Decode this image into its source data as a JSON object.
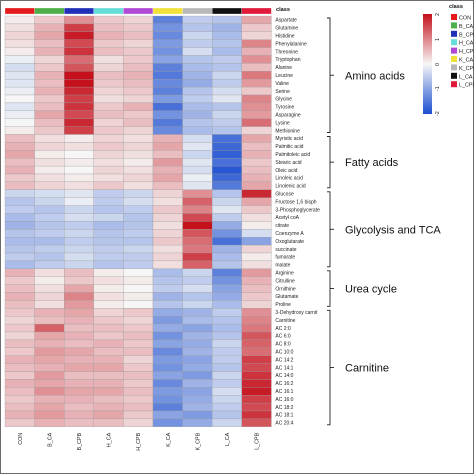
{
  "chart_data": {
    "type": "heatmap",
    "annotation_title": "class",
    "columns": [
      "CON",
      "B_CA",
      "B_CPB",
      "H_CA",
      "H_CPB",
      "K_CA",
      "K_CPB",
      "L_CA",
      "L_CPB"
    ],
    "class_colors": {
      "CON": "#e41a1c",
      "B_CA": "#4daf4a",
      "B_CPB": "#1f2fb8",
      "H_CA": "#66ddd8",
      "H_CPB": "#b04ad6",
      "K_CA": "#f0e23a",
      "K_CPB": "#b8b8b8",
      "L_CA": "#111111",
      "L_CPB": "#e01a3a"
    },
    "rows": [
      "Aspartate",
      "Glutamine",
      "Histidine",
      "Phenylalanine",
      "Threonine",
      "Tryptophan",
      "Alanine",
      "Leucine",
      "Valine",
      "Serine",
      "Glycine",
      "Tyrosine",
      "Asparagine",
      "Lysine",
      "Methionine",
      "Myristic acid",
      "Palmitic acid",
      "Palmitoleic acid",
      "Stearic acid",
      "Oleic acid",
      "Linoleic acid",
      "Linolenic acid",
      "Glucose",
      "Fructose 1,6 bisph",
      "3-Phosphoglycerate",
      "Acetyl coA",
      "citrate",
      "Coenzyme A",
      "Oxoglutarate",
      "succinate",
      "fumarate",
      "malate",
      "Arginine",
      "Citrulline",
      "Ornithine",
      "Glutamate",
      "Proline",
      "3-Dehydroxy carnit",
      "Carnitine",
      "AC 2:0",
      "AC 6:0",
      "AC 8:0",
      "AC 10:0",
      "AC 14:2",
      "AC 14:1",
      "AC 14:0",
      "AC 16:2",
      "AC 16:1",
      "AC 16:0",
      "AC 18:2",
      "AC 18:1",
      "AC 20:4"
    ],
    "groups": [
      {
        "label": "Amino acids",
        "start": 0,
        "end": 14
      },
      {
        "label": "Fatty acids",
        "start": 15,
        "end": 21
      },
      {
        "label": "Glycolysis and TCA",
        "start": 22,
        "end": 31
      },
      {
        "label": "Urea cycle",
        "start": 32,
        "end": 36
      },
      {
        "label": "Carnitine",
        "start": 37,
        "end": 51
      }
    ],
    "values": [
      [
        0.1,
        0.4,
        0.9,
        0.4,
        0.3,
        -1.4,
        -0.5,
        -0.6,
        0.7
      ],
      [
        0.2,
        0.6,
        1.6,
        0.5,
        0.4,
        -1.2,
        -0.6,
        -0.8,
        0.4
      ],
      [
        0.3,
        0.7,
        1.9,
        0.6,
        0.5,
        -1.3,
        -0.4,
        -0.7,
        0.3
      ],
      [
        0.2,
        0.5,
        1.5,
        0.4,
        0.3,
        -1.1,
        -0.5,
        -0.6,
        1.0
      ],
      [
        0.1,
        0.6,
        1.7,
        0.5,
        0.4,
        -1.2,
        -0.3,
        -0.7,
        0.6
      ],
      [
        -0.1,
        0.3,
        1.2,
        0.2,
        0.4,
        -1.0,
        -0.6,
        -0.5,
        0.9
      ],
      [
        -0.3,
        0.4,
        1.4,
        0.3,
        0.5,
        -1.4,
        -0.7,
        -0.6,
        0.5
      ],
      [
        -0.2,
        0.6,
        2.0,
        0.5,
        0.6,
        -1.5,
        -0.8,
        -0.4,
        1.1
      ],
      [
        -0.2,
        0.5,
        2.1,
        0.4,
        0.5,
        -1.3,
        -0.9,
        -0.5,
        0.8
      ],
      [
        -0.1,
        0.6,
        1.8,
        0.3,
        0.4,
        -1.4,
        -0.6,
        -0.3,
        0.4
      ],
      [
        0.0,
        0.4,
        1.6,
        0.2,
        0.3,
        -1.1,
        -0.5,
        -0.2,
        1.0
      ],
      [
        -0.2,
        0.5,
        1.7,
        0.4,
        0.6,
        -1.6,
        -0.7,
        -0.6,
        0.9
      ],
      [
        -0.1,
        0.7,
        1.5,
        0.5,
        0.4,
        -1.2,
        -0.8,
        -0.4,
        0.8
      ],
      [
        0.0,
        0.5,
        1.8,
        0.3,
        0.5,
        -1.5,
        -0.6,
        -0.5,
        1.2
      ],
      [
        0.1,
        0.4,
        1.6,
        0.4,
        0.3,
        -1.3,
        -0.7,
        -0.6,
        0.3
      ],
      [
        0.5,
        0.2,
        0.1,
        0.3,
        0.2,
        0.6,
        -0.3,
        -1.6,
        0.7
      ],
      [
        0.6,
        0.3,
        0.2,
        0.4,
        0.3,
        0.7,
        -0.2,
        -1.7,
        0.5
      ],
      [
        0.7,
        0.1,
        0.0,
        0.3,
        0.2,
        0.5,
        -0.4,
        -1.8,
        0.6
      ],
      [
        0.5,
        0.2,
        0.1,
        0.2,
        0.1,
        0.8,
        -0.2,
        -1.6,
        0.4
      ],
      [
        0.6,
        0.1,
        0.0,
        0.3,
        0.2,
        0.6,
        -0.3,
        -1.9,
        0.5
      ],
      [
        0.4,
        0.2,
        0.1,
        0.2,
        0.3,
        0.7,
        -0.1,
        -1.7,
        0.6
      ],
      [
        0.5,
        0.3,
        0.2,
        0.4,
        0.2,
        0.5,
        -0.2,
        -1.5,
        0.7
      ],
      [
        -0.4,
        -0.3,
        -0.2,
        -0.5,
        -0.4,
        0.3,
        0.9,
        -0.6,
        1.8
      ],
      [
        -0.6,
        -0.4,
        -0.1,
        -0.5,
        -0.3,
        0.2,
        1.3,
        -0.4,
        0.7
      ],
      [
        -0.5,
        -0.6,
        -0.4,
        -0.6,
        -0.5,
        0.4,
        1.0,
        -0.2,
        0.4
      ],
      [
        -0.7,
        -0.5,
        -0.3,
        -0.4,
        -0.6,
        0.3,
        1.5,
        -0.5,
        0.2
      ],
      [
        -0.8,
        -0.6,
        -0.5,
        -0.7,
        -0.6,
        0.2,
        2.2,
        -0.9,
        0.1
      ],
      [
        -0.6,
        -0.5,
        -0.4,
        -0.6,
        -0.5,
        0.3,
        1.4,
        -1.2,
        -0.3
      ],
      [
        -0.7,
        -0.7,
        -0.5,
        -0.6,
        -0.6,
        0.4,
        1.2,
        -1.6,
        -1.0
      ],
      [
        -0.6,
        -0.5,
        -0.4,
        -0.5,
        -0.4,
        0.2,
        1.1,
        -0.8,
        0.3
      ],
      [
        -0.5,
        -0.6,
        -0.3,
        -0.5,
        -0.5,
        0.3,
        1.6,
        -0.7,
        0.1
      ],
      [
        -0.7,
        -0.5,
        -0.4,
        -0.6,
        -0.5,
        0.2,
        1.3,
        -0.6,
        0.2
      ],
      [
        0.6,
        0.2,
        0.5,
        0.1,
        0.0,
        -0.7,
        -0.4,
        -1.4,
        0.8
      ],
      [
        0.4,
        0.1,
        0.4,
        0.2,
        0.1,
        -0.6,
        -0.5,
        -1.2,
        0.6
      ],
      [
        0.5,
        0.2,
        0.7,
        0.1,
        0.0,
        -0.5,
        -0.3,
        -1.0,
        0.5
      ],
      [
        0.6,
        0.3,
        1.0,
        0.2,
        0.1,
        -0.8,
        -0.6,
        -0.9,
        0.4
      ],
      [
        0.5,
        0.2,
        0.8,
        0.1,
        0.0,
        -0.6,
        -0.4,
        -0.7,
        0.3
      ],
      [
        0.4,
        0.6,
        0.7,
        0.3,
        0.4,
        -0.9,
        -0.8,
        -0.5,
        0.9
      ],
      [
        0.3,
        0.5,
        0.6,
        0.4,
        0.3,
        -1.1,
        -0.7,
        -0.6,
        1.0
      ],
      [
        0.4,
        1.3,
        0.5,
        0.5,
        0.4,
        -0.9,
        -1.0,
        -0.7,
        1.1
      ],
      [
        0.3,
        0.7,
        0.6,
        0.4,
        0.5,
        -1.2,
        -0.8,
        -0.6,
        1.4
      ],
      [
        0.5,
        0.6,
        0.5,
        0.6,
        0.4,
        -1.0,
        -0.9,
        -0.4,
        1.3
      ],
      [
        0.4,
        0.8,
        0.7,
        0.5,
        0.5,
        -1.3,
        -0.8,
        -0.5,
        1.2
      ],
      [
        0.6,
        0.7,
        0.6,
        0.6,
        0.3,
        -1.1,
        -1.0,
        -0.5,
        1.6
      ],
      [
        0.5,
        0.6,
        0.7,
        0.7,
        0.4,
        -1.2,
        -0.9,
        -0.6,
        1.5
      ],
      [
        0.4,
        0.8,
        0.5,
        0.5,
        0.5,
        -1.0,
        -1.1,
        -0.4,
        1.7
      ],
      [
        0.6,
        0.7,
        0.6,
        0.6,
        0.4,
        -1.3,
        -0.8,
        -0.5,
        1.8
      ],
      [
        0.5,
        0.9,
        0.7,
        0.7,
        0.5,
        -1.1,
        -1.0,
        -0.3,
        1.9
      ],
      [
        0.4,
        0.6,
        0.6,
        0.5,
        0.4,
        -1.2,
        -0.9,
        -0.4,
        1.6
      ],
      [
        0.5,
        0.7,
        0.5,
        0.6,
        0.5,
        -1.4,
        -0.8,
        -0.5,
        1.5
      ],
      [
        0.6,
        0.8,
        0.6,
        0.7,
        0.4,
        -1.0,
        -1.1,
        -0.6,
        1.7
      ],
      [
        0.4,
        0.6,
        0.5,
        0.5,
        0.3,
        -1.2,
        -0.9,
        -0.4,
        1.4
      ]
    ],
    "color_scale": {
      "min": -2,
      "mid": 0,
      "max": 2,
      "low_color": "#1c4fd0",
      "mid_color": "#f6f6f6",
      "high_color": "#c4111c"
    },
    "colorbar_ticks": [
      "2",
      "1",
      "0",
      "-1",
      "-2"
    ],
    "legend_title": "class"
  }
}
